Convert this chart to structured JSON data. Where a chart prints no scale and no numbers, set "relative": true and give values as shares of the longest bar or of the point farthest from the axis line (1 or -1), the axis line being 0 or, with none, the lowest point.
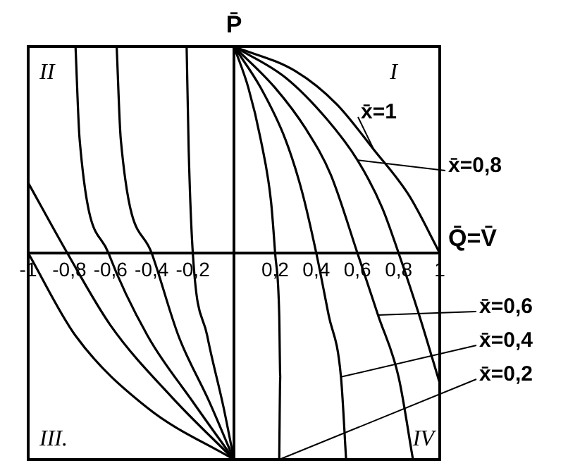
{
  "chart_data": {
    "type": "line",
    "xlabel": "Q̄=V̄",
    "ylabel": "P̄",
    "relative": true,
    "tick_labels": "x",
    "marker": "none",
    "legend": "right",
    "line_style": "solid",
    "xlim": [
      -1,
      1
    ],
    "xticks": [
      -1,
      {
        "value": -0.8,
        "label": "-0,8"
      },
      {
        "value": -0.6,
        "label": "-0,6"
      },
      {
        "value": -0.4,
        "label": "-0,4"
      },
      {
        "value": -0.2,
        "label": "-0,2"
      },
      {
        "value": 0.2,
        "label": "0,2"
      },
      {
        "value": 0.4,
        "label": "0,4"
      },
      {
        "value": 0.6,
        "label": "0,6"
      },
      {
        "value": 0.8,
        "label": "0,8"
      },
      1
    ],
    "annotations": [
      "I",
      "II",
      "III.",
      "IV"
    ],
    "series": [
      {
        "name": "x̄=1",
        "color": "#000000",
        "x": [
          0,
          0.3,
          0.5,
          0.68,
          0.85,
          1
        ],
        "values": [
          1,
          0.88,
          0.72,
          0.5,
          0.28,
          0
        ]
      },
      {
        "name": "x̄=0,8",
        "color": "#000000",
        "x": [
          0,
          0.25,
          0.45,
          0.6,
          0.72,
          0.8,
          0.9,
          1
        ],
        "values": [
          1,
          0.85,
          0.65,
          0.45,
          0.22,
          0,
          -0.3,
          -0.63
        ]
      },
      {
        "name": "x̄=0,6",
        "color": "#000000",
        "x": [
          0,
          0.2,
          0.35,
          0.47,
          0.6,
          0.7,
          0.8,
          0.87
        ],
        "values": [
          1,
          0.8,
          0.6,
          0.38,
          0,
          -0.3,
          -0.6,
          -1
        ]
      },
      {
        "name": "x̄=0,4",
        "color": "#000000",
        "x": [
          0,
          0.13,
          0.25,
          0.33,
          0.4,
          0.46,
          0.52,
          0.545
        ],
        "values": [
          1,
          0.8,
          0.55,
          0.3,
          0,
          -0.3,
          -0.6,
          -1
        ]
      },
      {
        "name": "x̄=0,2",
        "color": "#000000",
        "x": [
          0,
          0.07,
          0.13,
          0.18,
          0.2,
          0.22,
          0.225,
          0.22
        ],
        "values": [
          1,
          0.8,
          0.55,
          0.25,
          0,
          -0.3,
          -0.6,
          -1
        ]
      },
      {
        "color": "#000000",
        "x": [
          -1,
          -0.81,
          -0.6,
          -0.3,
          0
        ],
        "values": [
          0.34,
          0,
          -0.35,
          -0.7,
          -1
        ]
      },
      {
        "color": "#000000",
        "x": [
          -0.77,
          -0.75,
          -0.61,
          -0.42,
          -0.2,
          0
        ],
        "values": [
          1,
          0.55,
          0,
          -0.4,
          -0.72,
          -1
        ]
      },
      {
        "color": "#000000",
        "x": [
          -0.57,
          -0.55,
          -0.4,
          -0.27,
          -0.12,
          0
        ],
        "values": [
          1,
          0.55,
          0,
          -0.4,
          -0.72,
          -1
        ]
      },
      {
        "color": "#000000",
        "x": [
          -0.23,
          -0.22,
          -0.2,
          -0.13,
          -0.05,
          0
        ],
        "values": [
          1,
          0.5,
          0,
          -0.4,
          -0.75,
          -1
        ]
      },
      {
        "color": "#000000",
        "x": [
          -1,
          -0.77,
          -0.42,
          0
        ],
        "values": [
          0,
          -0.4,
          -0.75,
          -1
        ]
      }
    ]
  }
}
